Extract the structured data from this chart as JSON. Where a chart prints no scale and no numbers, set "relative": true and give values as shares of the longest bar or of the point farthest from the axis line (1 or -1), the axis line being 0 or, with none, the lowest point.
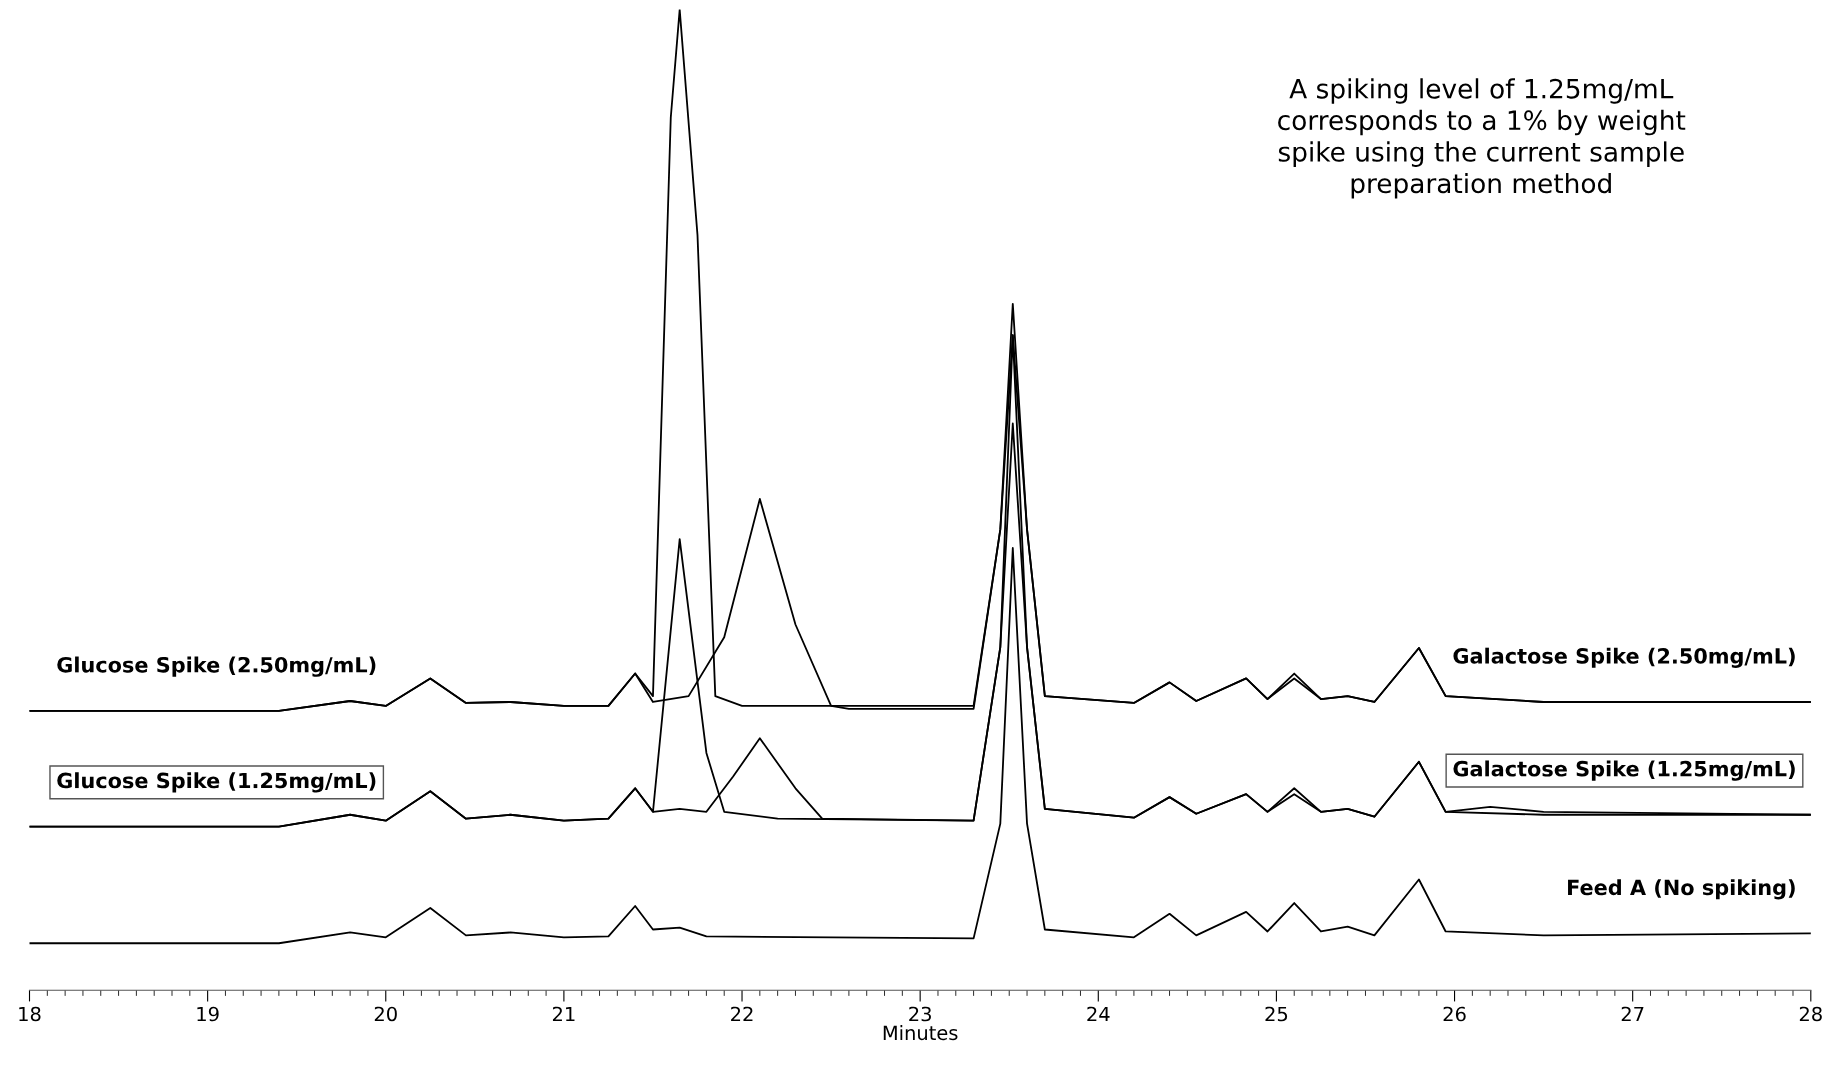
{
  "chart_data": {
    "type": "line",
    "relative": true,
    "xlabel": "Minutes",
    "xlim": [
      18,
      28
    ],
    "xticks": [
      18,
      19,
      20,
      21,
      22,
      23,
      24,
      25,
      26,
      27,
      28
    ],
    "grid": false,
    "legend": false,
    "marker": "none",
    "line_style": "solid",
    "annotations": [
      "A spiking level of 1.25mg/mL\ncorresponds to a 1% by weight\nspike using the current sample\npreparation method"
    ],
    "series": [
      {
        "name": "Glucose Spike (2.50mg/mL)",
        "color": "#000000",
        "x": [
          18,
          19.4,
          19.8,
          20.0,
          20.25,
          20.45,
          20.7,
          21.0,
          21.25,
          21.4,
          21.5,
          21.6,
          21.65,
          21.75,
          21.85,
          22.0,
          23.3,
          23.45,
          23.52,
          23.6,
          23.7,
          24.2,
          24.4,
          24.55,
          24.83,
          24.95,
          25.1,
          25.25,
          25.4,
          25.55,
          25.8,
          25.95,
          26.5,
          28
        ],
        "values": [
          0.285,
          0.285,
          0.295,
          0.29,
          0.318,
          0.293,
          0.294,
          0.29,
          0.29,
          0.323,
          0.3,
          0.89,
          1.0,
          0.77,
          0.3,
          0.29,
          0.29,
          0.47,
          0.7,
          0.47,
          0.3,
          0.293,
          0.314,
          0.295,
          0.318,
          0.297,
          0.323,
          0.297,
          0.3,
          0.294,
          0.349,
          0.3,
          0.294,
          0.294
        ]
      },
      {
        "name": "Galactose Spike (2.50mg/mL)",
        "color": "#000000",
        "x": [
          18,
          19.4,
          19.8,
          20.0,
          20.25,
          20.45,
          20.7,
          21.0,
          21.25,
          21.4,
          21.5,
          21.7,
          21.9,
          22.1,
          22.3,
          22.5,
          22.6,
          23.3,
          23.45,
          23.52,
          23.6,
          23.7,
          24.2,
          24.4,
          24.55,
          24.83,
          24.95,
          25.1,
          25.25,
          25.4,
          25.55,
          25.8,
          25.95,
          26.5,
          28
        ],
        "values": [
          0.285,
          0.285,
          0.295,
          0.29,
          0.318,
          0.293,
          0.294,
          0.29,
          0.29,
          0.323,
          0.294,
          0.3,
          0.36,
          0.501,
          0.373,
          0.29,
          0.287,
          0.287,
          0.47,
          0.668,
          0.47,
          0.3,
          0.293,
          0.314,
          0.295,
          0.318,
          0.297,
          0.318,
          0.297,
          0.3,
          0.294,
          0.349,
          0.3,
          0.294,
          0.294
        ]
      },
      {
        "name": "Glucose Spike (1.25mg/mL)",
        "color": "#000000",
        "x": [
          18,
          19.4,
          19.8,
          20.0,
          20.25,
          20.45,
          20.7,
          21.0,
          21.25,
          21.4,
          21.5,
          21.65,
          21.8,
          21.9,
          22.2,
          23.3,
          23.45,
          23.52,
          23.6,
          23.7,
          24.2,
          24.4,
          24.55,
          24.83,
          24.95,
          25.1,
          25.25,
          25.4,
          25.55,
          25.8,
          25.95,
          26.5,
          28
        ],
        "values": [
          0.167,
          0.167,
          0.179,
          0.173,
          0.203,
          0.175,
          0.179,
          0.173,
          0.175,
          0.206,
          0.182,
          0.46,
          0.242,
          0.182,
          0.175,
          0.173,
          0.35,
          0.578,
          0.35,
          0.185,
          0.176,
          0.197,
          0.18,
          0.2,
          0.182,
          0.206,
          0.182,
          0.185,
          0.177,
          0.233,
          0.182,
          0.179,
          0.179
        ]
      },
      {
        "name": "Galactose Spike (1.25mg/mL)",
        "color": "#000000",
        "x": [
          18,
          19.4,
          19.8,
          20.0,
          20.25,
          20.45,
          20.7,
          21.0,
          21.25,
          21.4,
          21.5,
          21.65,
          21.8,
          21.95,
          22.1,
          22.3,
          22.45,
          23.3,
          23.45,
          23.52,
          23.6,
          23.7,
          24.2,
          24.4,
          24.55,
          24.83,
          24.95,
          25.1,
          25.25,
          25.4,
          25.55,
          25.8,
          25.95,
          26.2,
          26.5,
          28
        ],
        "values": [
          0.167,
          0.167,
          0.179,
          0.173,
          0.203,
          0.175,
          0.179,
          0.173,
          0.175,
          0.206,
          0.182,
          0.185,
          0.182,
          0.218,
          0.257,
          0.206,
          0.175,
          0.173,
          0.35,
          0.668,
          0.35,
          0.185,
          0.176,
          0.197,
          0.18,
          0.2,
          0.182,
          0.2,
          0.182,
          0.185,
          0.177,
          0.233,
          0.182,
          0.187,
          0.182,
          0.179
        ]
      },
      {
        "name": "Feed A (No spiking)",
        "color": "#000000",
        "x": [
          18,
          19.4,
          19.8,
          20.0,
          20.25,
          20.45,
          20.7,
          21.0,
          21.25,
          21.4,
          21.5,
          21.65,
          21.8,
          23.3,
          23.45,
          23.52,
          23.6,
          23.7,
          24.2,
          24.4,
          24.55,
          24.83,
          24.95,
          25.1,
          25.25,
          25.4,
          25.55,
          25.8,
          25.95,
          26.5,
          28
        ],
        "values": [
          0.048,
          0.048,
          0.059,
          0.054,
          0.084,
          0.056,
          0.059,
          0.054,
          0.055,
          0.086,
          0.062,
          0.064,
          0.055,
          0.053,
          0.17,
          0.451,
          0.17,
          0.062,
          0.054,
          0.078,
          0.056,
          0.08,
          0.06,
          0.089,
          0.06,
          0.065,
          0.056,
          0.113,
          0.06,
          0.056,
          0.058
        ]
      }
    ]
  }
}
